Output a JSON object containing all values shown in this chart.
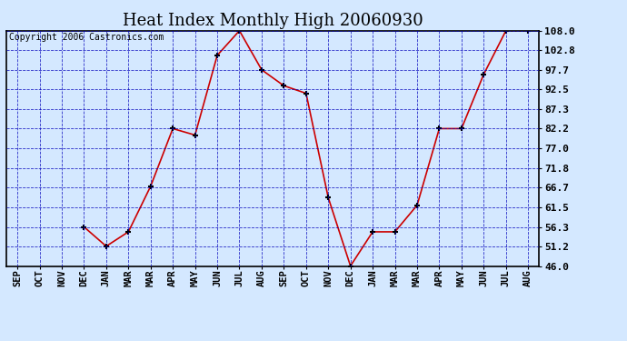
{
  "title": "Heat Index Monthly High 20060930",
  "copyright": "Copyright 2006 Castronics.com",
  "x_labels": [
    "SEP",
    "OCT",
    "NOV",
    "DEC",
    "JAN",
    "MAR",
    "MAR",
    "APR",
    "MAY",
    "JUN",
    "JUL",
    "AUG",
    "SEP",
    "OCT",
    "NOV",
    "DEC",
    "JAN",
    "MAR",
    "MAR",
    "APR",
    "MAY",
    "JUN",
    "JUL",
    "AUG"
  ],
  "y_values": [
    null,
    null,
    null,
    56.3,
    51.2,
    55.0,
    67.0,
    82.2,
    80.5,
    101.5,
    108.0,
    97.7,
    93.5,
    91.5,
    64.0,
    46.0,
    55.0,
    55.0,
    62.0,
    82.2,
    82.2,
    96.5,
    108.0,
    108.0
  ],
  "ylim": [
    46.0,
    108.0
  ],
  "yticks": [
    46.0,
    51.2,
    56.3,
    61.5,
    66.7,
    71.8,
    77.0,
    82.2,
    87.3,
    92.5,
    97.7,
    102.8,
    108.0
  ],
  "ytick_labels": [
    "46.0",
    "51.2",
    "56.3",
    "61.5",
    "66.7",
    "71.8",
    "77.0",
    "82.2",
    "87.3",
    "92.5",
    "97.7",
    "102.8",
    "108.0"
  ],
  "line_color": "#cc0000",
  "marker": "+",
  "marker_color": "#000000",
  "bg_color": "#d4e8ff",
  "grid_color": "#0000bb",
  "border_color": "#000000",
  "title_fontsize": 13,
  "label_fontsize": 7.5,
  "tick_fontsize": 8,
  "copyright_fontsize": 7
}
